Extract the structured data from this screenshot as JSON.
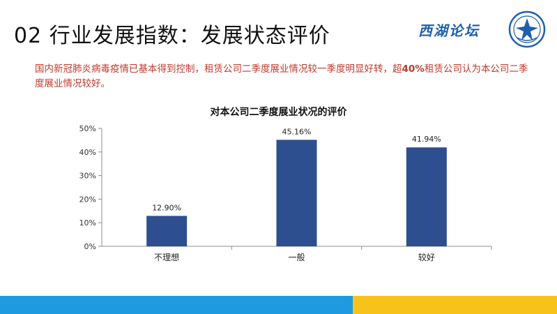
{
  "slide": {
    "title": "02 行业发展指数：发展状态评价",
    "logo_text": "西湖论坛",
    "intro_before": "国内新冠肺炎病毒疫情已基本得到控制，租赁公司二季度展业情况较一季度明显好转，超",
    "intro_highlight": "40%",
    "intro_after": "租赁公司认为本公司二季度展业情况较好。"
  },
  "colors": {
    "bar": "#2e4f8f",
    "intro_text": "#c0392b",
    "footer_blue": "#1e9be0",
    "footer_yellow": "#f7c21a"
  },
  "chart_data": {
    "type": "bar",
    "title": "对本公司二季度展业状况的评价",
    "categories": [
      "不理想",
      "一般",
      "较好"
    ],
    "values": [
      12.9,
      45.16,
      41.94
    ],
    "value_labels": [
      "12.90%",
      "45.16%",
      "41.94%"
    ],
    "yticks": [
      "0%",
      "10%",
      "20%",
      "30%",
      "40%",
      "50%"
    ],
    "ylim": [
      0,
      50
    ],
    "xlabel": "",
    "ylabel": "",
    "grid": false,
    "legend": "none"
  }
}
